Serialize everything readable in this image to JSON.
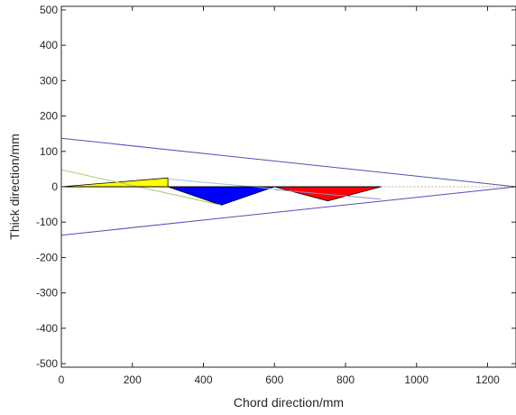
{
  "chart_data": {
    "type": "line",
    "title": "",
    "xlabel": "Chord direction/mm",
    "ylabel": "Thick direction/mm",
    "xlim": [
      0,
      1280
    ],
    "ylim": [
      -510,
      510
    ],
    "grid": false,
    "x_ticks": [
      0,
      200,
      400,
      600,
      800,
      1000,
      1200
    ],
    "y_ticks": [
      -500,
      -400,
      -300,
      -200,
      -100,
      0,
      100,
      200,
      300,
      400,
      500
    ],
    "x_tick_labels": [
      "0",
      "200",
      "400",
      "600",
      "800",
      "1000",
      "1200"
    ],
    "y_tick_labels": [
      "-500",
      "-400",
      "-300",
      "-200",
      "-100",
      "0",
      "100",
      "200",
      "300",
      "400",
      "500"
    ],
    "lines": [
      {
        "color": "#5050b8",
        "dash": false,
        "x": [
          0,
          1280
        ],
        "y": [
          137,
          0
        ]
      },
      {
        "color": "#5050b8",
        "dash": false,
        "x": [
          0,
          1280
        ],
        "y": [
          -137,
          0
        ]
      },
      {
        "color": "#a8c870",
        "dash": false,
        "x": [
          0,
          450
        ],
        "y": [
          48,
          -52
        ]
      },
      {
        "color": "#88c8e0",
        "dash": false,
        "x": [
          300,
          600
        ],
        "y": [
          22,
          -6
        ]
      },
      {
        "color": "#9090d0",
        "dash": false,
        "x": [
          600,
          900
        ],
        "y": [
          -8,
          -35
        ]
      },
      {
        "color": "#d8a080",
        "dash": true,
        "x": [
          900,
          1280
        ],
        "y": [
          0,
          0
        ]
      },
      {
        "color": "#000000",
        "dash": false,
        "x": [
          0,
          900
        ],
        "y": [
          0,
          0
        ]
      }
    ],
    "polygons": [
      {
        "color": "#ffff00",
        "x": [
          0,
          300,
          300
        ],
        "y": [
          0,
          0,
          25
        ]
      },
      {
        "color": "#0000ff",
        "x": [
          300,
          600,
          450
        ],
        "y": [
          0,
          0,
          -52
        ]
      },
      {
        "color": "#ff0000",
        "x": [
          600,
          900,
          750
        ],
        "y": [
          0,
          0,
          -40
        ]
      }
    ]
  }
}
